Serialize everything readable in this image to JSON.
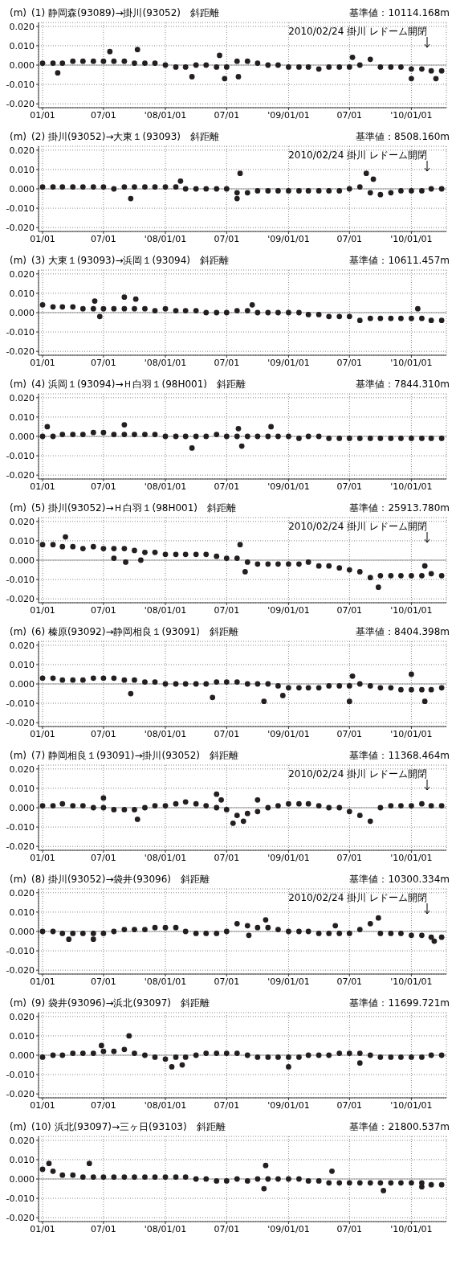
{
  "chart_data": [
    {
      "type": "scatter",
      "ylabel": "(m)",
      "title": "(1) 静岡森(93089)→掛川(93052)　斜距離",
      "subtitle": "基準値：10114.168m",
      "marker": "circle",
      "grid": true,
      "xlim": [
        "2006-12-20",
        "2010-04-15"
      ],
      "ylim": [
        -0.022,
        0.022
      ],
      "xticks": [
        {
          "value": "2007-01-01",
          "label": "01/01"
        },
        {
          "value": "2007-07-01",
          "label": "07/01"
        },
        {
          "value": "2008-01-01",
          "label": "'08/01/01"
        },
        {
          "value": "2008-07-01",
          "label": "07/01"
        },
        {
          "value": "2009-01-01",
          "label": "'09/01/01"
        },
        {
          "value": "2009-07-01",
          "label": "07/01"
        },
        {
          "value": "2010-01-01",
          "label": "'10/01/01"
        }
      ],
      "yticks": [
        {
          "value": 0.02,
          "label": "0.020"
        },
        {
          "value": 0.01,
          "label": "0.010"
        },
        {
          "value": 0,
          "label": "0.000"
        },
        {
          "value": -0.01,
          "label": "-0.010"
        },
        {
          "value": -0.02,
          "label": "-0.020"
        }
      ],
      "ref_lines": [
        {
          "axis": "y",
          "value": 0,
          "color": "#999999"
        }
      ],
      "annotations": [
        "2010/02/24 掛川 レドーム開閉"
      ],
      "x": [
        "2007-01",
        "2007-02",
        "2007-03",
        "2007-04",
        "2007-05",
        "2007-06",
        "2007-07",
        "2007-08",
        "2007-09",
        "2007-10",
        "2007-11",
        "2007-12",
        "2008-01",
        "2008-02",
        "2008-03",
        "2008-04",
        "2008-05",
        "2008-06",
        "2008-07",
        "2008-08",
        "2008-09",
        "2008-10",
        "2008-11",
        "2008-12",
        "2009-01",
        "2009-02",
        "2009-03",
        "2009-04",
        "2009-05",
        "2009-06",
        "2009-07",
        "2009-08",
        "2009-09",
        "2009-10",
        "2009-11",
        "2009-12",
        "2010-01",
        "2010-02",
        "2010-03",
        "2010-04"
      ],
      "series": [
        {
          "color": "#231f20",
          "values": [
            0.001,
            0.001,
            0.001,
            0.002,
            0.002,
            0.002,
            0.002,
            0.002,
            0.002,
            0.001,
            0.001,
            0.001,
            0.0,
            -0.001,
            -0.001,
            0.0,
            0.0,
            -0.001,
            -0.001,
            0.002,
            0.002,
            0.001,
            0.0,
            0.0,
            -0.001,
            -0.001,
            -0.001,
            -0.002,
            -0.001,
            -0.001,
            -0.001,
            0.0,
            0.003,
            -0.001,
            -0.001,
            -0.001,
            -0.002,
            -0.002,
            -0.003,
            -0.003
          ]
        },
        {
          "color": "#231f20",
          "x": [
            "2007-02-15",
            "2007-07-20",
            "2007-10-10",
            "2008-03-20",
            "2008-06-10",
            "2008-06-25",
            "2008-08-05",
            "2009-07-10",
            "2010-01-01",
            "2010-03-15"
          ],
          "values": [
            -0.004,
            0.007,
            0.008,
            -0.006,
            0.005,
            -0.007,
            -0.006,
            0.004,
            -0.007,
            -0.007
          ]
        }
      ]
    },
    {
      "type": "scatter",
      "ylabel": "(m)",
      "title": "(2) 掛川(93052)→大東１(93093)　斜距離",
      "subtitle": "基準値：8508.160m",
      "marker": "circle",
      "grid": true,
      "xlim": [
        "2006-12-20",
        "2010-04-15"
      ],
      "ylim": [
        -0.022,
        0.022
      ],
      "xticks": [
        {
          "value": "2007-01-01",
          "label": "01/01"
        },
        {
          "value": "2007-07-01",
          "label": "07/01"
        },
        {
          "value": "2008-01-01",
          "label": "'08/01/01"
        },
        {
          "value": "2008-07-01",
          "label": "07/01"
        },
        {
          "value": "2009-01-01",
          "label": "'09/01/01"
        },
        {
          "value": "2009-07-01",
          "label": "07/01"
        },
        {
          "value": "2010-01-01",
          "label": "'10/01/01"
        }
      ],
      "yticks": [
        {
          "value": 0.02,
          "label": "0.020"
        },
        {
          "value": 0.01,
          "label": "0.010"
        },
        {
          "value": 0,
          "label": "0.000"
        },
        {
          "value": -0.01,
          "label": "-0.010"
        },
        {
          "value": -0.02,
          "label": "-0.020"
        }
      ],
      "ref_lines": [
        {
          "axis": "y",
          "value": 0,
          "color": "#999999"
        }
      ],
      "annotations": [
        "2010/02/24 掛川 レドーム開閉"
      ],
      "x": [
        "2007-01",
        "2007-02",
        "2007-03",
        "2007-04",
        "2007-05",
        "2007-06",
        "2007-07",
        "2007-08",
        "2007-09",
        "2007-10",
        "2007-11",
        "2007-12",
        "2008-01",
        "2008-02",
        "2008-03",
        "2008-04",
        "2008-05",
        "2008-06",
        "2008-07",
        "2008-08",
        "2008-09",
        "2008-10",
        "2008-11",
        "2008-12",
        "2009-01",
        "2009-02",
        "2009-03",
        "2009-04",
        "2009-05",
        "2009-06",
        "2009-07",
        "2009-08",
        "2009-09",
        "2009-10",
        "2009-11",
        "2009-12",
        "2010-01",
        "2010-02",
        "2010-03",
        "2010-04"
      ],
      "series": [
        {
          "color": "#231f20",
          "values": [
            0.001,
            0.001,
            0.001,
            0.001,
            0.001,
            0.001,
            0.001,
            0.0,
            0.001,
            0.001,
            0.001,
            0.001,
            0.001,
            0.001,
            0.0,
            0.0,
            0.0,
            0.0,
            0.0,
            -0.002,
            -0.002,
            -0.001,
            -0.001,
            -0.001,
            -0.001,
            -0.001,
            -0.001,
            -0.001,
            -0.001,
            -0.001,
            0.0,
            0.001,
            -0.002,
            -0.003,
            -0.002,
            -0.001,
            -0.001,
            -0.001,
            0.0,
            0.0
          ]
        },
        {
          "color": "#231f20",
          "x": [
            "2007-09-20",
            "2008-02-15",
            "2008-08-01",
            "2008-08-10",
            "2009-08-20",
            "2009-09-10"
          ],
          "values": [
            -0.005,
            0.004,
            -0.005,
            0.008,
            0.008,
            0.005
          ]
        }
      ]
    },
    {
      "type": "scatter",
      "ylabel": "(m)",
      "title": "(3) 大東１(93093)→浜岡１(93094)　斜距離",
      "subtitle": "基準値：10611.457m",
      "marker": "circle",
      "grid": true,
      "xlim": [
        "2006-12-20",
        "2010-04-15"
      ],
      "ylim": [
        -0.022,
        0.022
      ],
      "xticks": [
        {
          "value": "2007-01-01",
          "label": "01/01"
        },
        {
          "value": "2007-07-01",
          "label": "07/01"
        },
        {
          "value": "2008-01-01",
          "label": "'08/01/01"
        },
        {
          "value": "2008-07-01",
          "label": "07/01"
        },
        {
          "value": "2009-01-01",
          "label": "'09/01/01"
        },
        {
          "value": "2009-07-01",
          "label": "07/01"
        },
        {
          "value": "2010-01-01",
          "label": "'10/01/01"
        }
      ],
      "yticks": [
        {
          "value": 0.02,
          "label": "0.020"
        },
        {
          "value": 0.01,
          "label": "0.010"
        },
        {
          "value": 0,
          "label": "0.000"
        },
        {
          "value": -0.01,
          "label": "-0.010"
        },
        {
          "value": -0.02,
          "label": "-0.020"
        }
      ],
      "ref_lines": [
        {
          "axis": "y",
          "value": 0,
          "color": "#999999"
        }
      ],
      "x": [
        "2007-01",
        "2007-02",
        "2007-03",
        "2007-04",
        "2007-05",
        "2007-06",
        "2007-07",
        "2007-08",
        "2007-09",
        "2007-10",
        "2007-11",
        "2007-12",
        "2008-01",
        "2008-02",
        "2008-03",
        "2008-04",
        "2008-05",
        "2008-06",
        "2008-07",
        "2008-08",
        "2008-09",
        "2008-10",
        "2008-11",
        "2008-12",
        "2009-01",
        "2009-02",
        "2009-03",
        "2009-04",
        "2009-05",
        "2009-06",
        "2009-07",
        "2009-08",
        "2009-09",
        "2009-10",
        "2009-11",
        "2009-12",
        "2010-01",
        "2010-02",
        "2010-03",
        "2010-04"
      ],
      "series": [
        {
          "color": "#231f20",
          "values": [
            0.004,
            0.003,
            0.003,
            0.003,
            0.002,
            0.002,
            0.002,
            0.002,
            0.002,
            0.002,
            0.002,
            0.001,
            0.002,
            0.001,
            0.001,
            0.001,
            0.0,
            0.0,
            0.0,
            0.001,
            0.001,
            0.0,
            0.0,
            0.0,
            0.0,
            0.0,
            -0.001,
            -0.001,
            -0.002,
            -0.002,
            -0.002,
            -0.004,
            -0.003,
            -0.003,
            -0.003,
            -0.003,
            -0.003,
            -0.003,
            -0.004,
            -0.004
          ]
        },
        {
          "color": "#231f20",
          "x": [
            "2007-06-05",
            "2007-06-20",
            "2007-09-01",
            "2007-10-05",
            "2008-09-15",
            "2010-01-20"
          ],
          "values": [
            0.006,
            -0.002,
            0.008,
            0.007,
            0.004,
            0.002
          ]
        }
      ]
    },
    {
      "type": "scatter",
      "ylabel": "(m)",
      "title": "(4) 浜岡１(93094)→Ｈ白羽１(98H001)　斜距離",
      "subtitle": "基準値：7844.310m",
      "marker": "circle",
      "grid": true,
      "xlim": [
        "2006-12-20",
        "2010-04-15"
      ],
      "ylim": [
        -0.022,
        0.022
      ],
      "xticks": [
        {
          "value": "2007-01-01",
          "label": "01/01"
        },
        {
          "value": "2007-07-01",
          "label": "07/01"
        },
        {
          "value": "2008-01-01",
          "label": "'08/01/01"
        },
        {
          "value": "2008-07-01",
          "label": "07/01"
        },
        {
          "value": "2009-01-01",
          "label": "'09/01/01"
        },
        {
          "value": "2009-07-01",
          "label": "07/01"
        },
        {
          "value": "2010-01-01",
          "label": "'10/01/01"
        }
      ],
      "yticks": [
        {
          "value": 0.02,
          "label": "0.020"
        },
        {
          "value": 0.01,
          "label": "0.010"
        },
        {
          "value": 0,
          "label": "0.000"
        },
        {
          "value": -0.01,
          "label": "-0.010"
        },
        {
          "value": -0.02,
          "label": "-0.020"
        }
      ],
      "ref_lines": [
        {
          "axis": "y",
          "value": 0,
          "color": "#999999"
        }
      ],
      "x": [
        "2007-01",
        "2007-02",
        "2007-03",
        "2007-04",
        "2007-05",
        "2007-06",
        "2007-07",
        "2007-08",
        "2007-09",
        "2007-10",
        "2007-11",
        "2007-12",
        "2008-01",
        "2008-02",
        "2008-03",
        "2008-04",
        "2008-05",
        "2008-06",
        "2008-07",
        "2008-08",
        "2008-09",
        "2008-10",
        "2008-11",
        "2008-12",
        "2009-01",
        "2009-02",
        "2009-03",
        "2009-04",
        "2009-05",
        "2009-06",
        "2009-07",
        "2009-08",
        "2009-09",
        "2009-10",
        "2009-11",
        "2009-12",
        "2010-01",
        "2010-02",
        "2010-03",
        "2010-04"
      ],
      "series": [
        {
          "color": "#231f20",
          "values": [
            0.0,
            0.0,
            0.001,
            0.001,
            0.001,
            0.002,
            0.002,
            0.001,
            0.001,
            0.001,
            0.001,
            0.001,
            0.0,
            0.0,
            0.0,
            0.0,
            0.0,
            0.001,
            0.0,
            0.0,
            0.0,
            0.0,
            0.0,
            0.0,
            0.0,
            -0.001,
            0.0,
            0.0,
            -0.001,
            -0.001,
            -0.001,
            -0.001,
            -0.001,
            -0.001,
            -0.001,
            -0.001,
            -0.001,
            -0.001,
            -0.001,
            -0.001
          ]
        },
        {
          "color": "#231f20",
          "x": [
            "2007-01-15",
            "2007-09-01",
            "2008-03-20",
            "2008-08-05",
            "2008-08-15",
            "2008-11-10"
          ],
          "values": [
            0.005,
            0.006,
            -0.006,
            0.004,
            -0.005,
            0.005
          ]
        }
      ]
    },
    {
      "type": "scatter",
      "ylabel": "(m)",
      "title": "(5) 掛川(93052)→Ｈ白羽１(98H001)　斜距離",
      "subtitle": "基準値：25913.780m",
      "marker": "circle",
      "grid": true,
      "xlim": [
        "2006-12-20",
        "2010-04-15"
      ],
      "ylim": [
        -0.022,
        0.022
      ],
      "xticks": [
        {
          "value": "2007-01-01",
          "label": "01/01"
        },
        {
          "value": "2007-07-01",
          "label": "07/01"
        },
        {
          "value": "2008-01-01",
          "label": "'08/01/01"
        },
        {
          "value": "2008-07-01",
          "label": "07/01"
        },
        {
          "value": "2009-01-01",
          "label": "'09/01/01"
        },
        {
          "value": "2009-07-01",
          "label": "07/01"
        },
        {
          "value": "2010-01-01",
          "label": "'10/01/01"
        }
      ],
      "yticks": [
        {
          "value": 0.02,
          "label": "0.020"
        },
        {
          "value": 0.01,
          "label": "0.010"
        },
        {
          "value": 0,
          "label": "0.000"
        },
        {
          "value": -0.01,
          "label": "-0.010"
        },
        {
          "value": -0.02,
          "label": "-0.020"
        }
      ],
      "ref_lines": [
        {
          "axis": "y",
          "value": 0,
          "color": "#999999"
        }
      ],
      "annotations": [
        "2010/02/24 掛川 レドーム開閉"
      ],
      "x": [
        "2007-01",
        "2007-02",
        "2007-03",
        "2007-04",
        "2007-05",
        "2007-06",
        "2007-07",
        "2007-08",
        "2007-09",
        "2007-10",
        "2007-11",
        "2007-12",
        "2008-01",
        "2008-02",
        "2008-03",
        "2008-04",
        "2008-05",
        "2008-06",
        "2008-07",
        "2008-08",
        "2008-09",
        "2008-10",
        "2008-11",
        "2008-12",
        "2009-01",
        "2009-02",
        "2009-03",
        "2009-04",
        "2009-05",
        "2009-06",
        "2009-07",
        "2009-08",
        "2009-09",
        "2009-10",
        "2009-11",
        "2009-12",
        "2010-01",
        "2010-02",
        "2010-03",
        "2010-04"
      ],
      "series": [
        {
          "color": "#231f20",
          "values": [
            0.008,
            0.008,
            0.007,
            0.007,
            0.006,
            0.007,
            0.006,
            0.006,
            0.006,
            0.005,
            0.004,
            0.004,
            0.003,
            0.003,
            0.003,
            0.003,
            0.003,
            0.002,
            0.001,
            0.001,
            -0.001,
            -0.002,
            -0.002,
            -0.002,
            -0.002,
            -0.002,
            -0.001,
            -0.003,
            -0.003,
            -0.004,
            -0.005,
            -0.006,
            -0.009,
            -0.008,
            -0.008,
            -0.008,
            -0.008,
            -0.008,
            -0.007,
            -0.008
          ]
        },
        {
          "color": "#231f20",
          "x": [
            "2007-03-10",
            "2007-08-01",
            "2007-09-05",
            "2007-10-20",
            "2008-08-10",
            "2008-08-25",
            "2009-09-25",
            "2010-02-10"
          ],
          "values": [
            0.012,
            0.001,
            -0.001,
            0.0,
            0.008,
            -0.006,
            -0.014,
            -0.003
          ]
        }
      ]
    },
    {
      "type": "scatter",
      "ylabel": "(m)",
      "title": "(6) 榛原(93092)→静岡相良１(93091)　斜距離",
      "subtitle": "基準値：8404.398m",
      "marker": "circle",
      "grid": true,
      "xlim": [
        "2006-12-20",
        "2010-04-15"
      ],
      "ylim": [
        -0.022,
        0.022
      ],
      "xticks": [
        {
          "value": "2007-01-01",
          "label": "01/01"
        },
        {
          "value": "2007-07-01",
          "label": "07/01"
        },
        {
          "value": "2008-01-01",
          "label": "'08/01/01"
        },
        {
          "value": "2008-07-01",
          "label": "07/01"
        },
        {
          "value": "2009-01-01",
          "label": "'09/01/01"
        },
        {
          "value": "2009-07-01",
          "label": "07/01"
        },
        {
          "value": "2010-01-01",
          "label": "'10/01/01"
        }
      ],
      "yticks": [
        {
          "value": 0.02,
          "label": "0.020"
        },
        {
          "value": 0.01,
          "label": "0.010"
        },
        {
          "value": 0,
          "label": "0.000"
        },
        {
          "value": -0.01,
          "label": "-0.010"
        },
        {
          "value": -0.02,
          "label": "-0.020"
        }
      ],
      "ref_lines": [
        {
          "axis": "y",
          "value": 0,
          "color": "#999999"
        }
      ],
      "x": [
        "2007-01",
        "2007-02",
        "2007-03",
        "2007-04",
        "2007-05",
        "2007-06",
        "2007-07",
        "2007-08",
        "2007-09",
        "2007-10",
        "2007-11",
        "2007-12",
        "2008-01",
        "2008-02",
        "2008-03",
        "2008-04",
        "2008-05",
        "2008-06",
        "2008-07",
        "2008-08",
        "2008-09",
        "2008-10",
        "2008-11",
        "2008-12",
        "2009-01",
        "2009-02",
        "2009-03",
        "2009-04",
        "2009-05",
        "2009-06",
        "2009-07",
        "2009-08",
        "2009-09",
        "2009-10",
        "2009-11",
        "2009-12",
        "2010-01",
        "2010-02",
        "2010-03",
        "2010-04"
      ],
      "series": [
        {
          "color": "#231f20",
          "values": [
            0.003,
            0.003,
            0.002,
            0.002,
            0.002,
            0.003,
            0.003,
            0.003,
            0.002,
            0.002,
            0.001,
            0.001,
            0.0,
            0.0,
            0.0,
            0.0,
            0.0,
            0.001,
            0.001,
            0.001,
            0.0,
            0.0,
            0.0,
            -0.001,
            -0.002,
            -0.002,
            -0.002,
            -0.002,
            -0.001,
            -0.001,
            -0.001,
            0.0,
            -0.001,
            -0.002,
            -0.002,
            -0.003,
            -0.003,
            -0.003,
            -0.003,
            -0.002
          ]
        },
        {
          "color": "#231f20",
          "x": [
            "2007-09-20",
            "2008-05-20",
            "2008-10-20",
            "2008-12-15",
            "2009-07-01",
            "2009-07-10",
            "2010-01-01",
            "2010-02-10"
          ],
          "values": [
            -0.005,
            -0.007,
            -0.009,
            -0.006,
            -0.009,
            0.004,
            0.005,
            -0.009
          ]
        }
      ]
    },
    {
      "type": "scatter",
      "ylabel": "(m)",
      "title": "(7) 静岡相良１(93091)→掛川(93052)　斜距離",
      "subtitle": "基準値：11368.464m",
      "marker": "circle",
      "grid": true,
      "xlim": [
        "2006-12-20",
        "2010-04-15"
      ],
      "ylim": [
        -0.022,
        0.022
      ],
      "xticks": [
        {
          "value": "2007-01-01",
          "label": "01/01"
        },
        {
          "value": "2007-07-01",
          "label": "07/01"
        },
        {
          "value": "2008-01-01",
          "label": "'08/01/01"
        },
        {
          "value": "2008-07-01",
          "label": "07/01"
        },
        {
          "value": "2009-01-01",
          "label": "'09/01/01"
        },
        {
          "value": "2009-07-01",
          "label": "07/01"
        },
        {
          "value": "2010-01-01",
          "label": "'10/01/01"
        }
      ],
      "yticks": [
        {
          "value": 0.02,
          "label": "0.020"
        },
        {
          "value": 0.01,
          "label": "0.010"
        },
        {
          "value": 0,
          "label": "0.000"
        },
        {
          "value": -0.01,
          "label": "-0.010"
        },
        {
          "value": -0.02,
          "label": "-0.020"
        }
      ],
      "ref_lines": [
        {
          "axis": "y",
          "value": 0,
          "color": "#999999"
        }
      ],
      "annotations": [
        "2010/02/24 掛川 レドーム開閉"
      ],
      "x": [
        "2007-01",
        "2007-02",
        "2007-03",
        "2007-04",
        "2007-05",
        "2007-06",
        "2007-07",
        "2007-08",
        "2007-09",
        "2007-10",
        "2007-11",
        "2007-12",
        "2008-01",
        "2008-02",
        "2008-03",
        "2008-04",
        "2008-05",
        "2008-06",
        "2008-07",
        "2008-08",
        "2008-09",
        "2008-10",
        "2008-11",
        "2008-12",
        "2009-01",
        "2009-02",
        "2009-03",
        "2009-04",
        "2009-05",
        "2009-06",
        "2009-07",
        "2009-08",
        "2009-09",
        "2009-10",
        "2009-11",
        "2009-12",
        "2010-01",
        "2010-02",
        "2010-03",
        "2010-04"
      ],
      "series": [
        {
          "color": "#231f20",
          "values": [
            0.001,
            0.001,
            0.002,
            0.001,
            0.001,
            0.0,
            0.0,
            -0.001,
            -0.001,
            -0.001,
            0.0,
            0.001,
            0.001,
            0.002,
            0.003,
            0.002,
            0.001,
            0.0,
            -0.001,
            -0.004,
            -0.003,
            -0.002,
            0.0,
            0.001,
            0.002,
            0.002,
            0.002,
            0.001,
            0.0,
            0.0,
            -0.002,
            -0.004,
            -0.007,
            0.0,
            0.001,
            0.001,
            0.001,
            0.002,
            0.001,
            0.001
          ]
        },
        {
          "color": "#231f20",
          "x": [
            "2007-07-01",
            "2007-10-10",
            "2008-06-01",
            "2008-06-15",
            "2008-07-20",
            "2008-08-20",
            "2008-10-01"
          ],
          "values": [
            0.005,
            -0.006,
            0.007,
            0.004,
            -0.008,
            -0.007,
            0.004
          ]
        }
      ]
    },
    {
      "type": "scatter",
      "ylabel": "(m)",
      "title": "(8) 掛川(93052)→袋井(93096)　斜距離",
      "subtitle": "基準値：10300.334m",
      "marker": "circle",
      "grid": true,
      "xlim": [
        "2006-12-20",
        "2010-04-15"
      ],
      "ylim": [
        -0.022,
        0.022
      ],
      "xticks": [
        {
          "value": "2007-01-01",
          "label": "01/01"
        },
        {
          "value": "2007-07-01",
          "label": "07/01"
        },
        {
          "value": "2008-01-01",
          "label": "'08/01/01"
        },
        {
          "value": "2008-07-01",
          "label": "07/01"
        },
        {
          "value": "2009-01-01",
          "label": "'09/01/01"
        },
        {
          "value": "2009-07-01",
          "label": "07/01"
        },
        {
          "value": "2010-01-01",
          "label": "'10/01/01"
        }
      ],
      "yticks": [
        {
          "value": 0.02,
          "label": "0.020"
        },
        {
          "value": 0.01,
          "label": "0.010"
        },
        {
          "value": 0,
          "label": "0.000"
        },
        {
          "value": -0.01,
          "label": "-0.010"
        },
        {
          "value": -0.02,
          "label": "-0.020"
        }
      ],
      "ref_lines": [
        {
          "axis": "y",
          "value": 0,
          "color": "#999999"
        }
      ],
      "annotations": [
        "2010/02/24 掛川 レドーム開閉"
      ],
      "x": [
        "2007-01",
        "2007-02",
        "2007-03",
        "2007-04",
        "2007-05",
        "2007-06",
        "2007-07",
        "2007-08",
        "2007-09",
        "2007-10",
        "2007-11",
        "2007-12",
        "2008-01",
        "2008-02",
        "2008-03",
        "2008-04",
        "2008-05",
        "2008-06",
        "2008-07",
        "2008-08",
        "2008-09",
        "2008-10",
        "2008-11",
        "2008-12",
        "2009-01",
        "2009-02",
        "2009-03",
        "2009-04",
        "2009-05",
        "2009-06",
        "2009-07",
        "2009-08",
        "2009-09",
        "2009-10",
        "2009-11",
        "2009-12",
        "2010-01",
        "2010-02",
        "2010-03",
        "2010-04"
      ],
      "series": [
        {
          "color": "#231f20",
          "values": [
            0.0,
            0.0,
            -0.001,
            -0.001,
            -0.001,
            -0.001,
            -0.001,
            0.0,
            0.001,
            0.001,
            0.001,
            0.002,
            0.002,
            0.002,
            0.0,
            -0.001,
            -0.001,
            -0.001,
            0.0,
            0.004,
            0.003,
            0.002,
            0.002,
            0.001,
            0.0,
            0.0,
            0.0,
            -0.001,
            -0.001,
            -0.001,
            -0.001,
            0.001,
            0.004,
            -0.001,
            -0.001,
            -0.001,
            -0.002,
            -0.002,
            -0.003,
            -0.003
          ]
        },
        {
          "color": "#231f20",
          "x": [
            "2007-03-20",
            "2007-06-01",
            "2008-09-05",
            "2008-10-25",
            "2009-05-20",
            "2009-09-25",
            "2010-03-10"
          ],
          "values": [
            -0.004,
            -0.004,
            -0.002,
            0.006,
            0.003,
            0.007,
            -0.005
          ]
        }
      ]
    },
    {
      "type": "scatter",
      "ylabel": "(m)",
      "title": "(9) 袋井(93096)→浜北(93097)　斜距離",
      "subtitle": "基準値：11699.721m",
      "marker": "circle",
      "grid": true,
      "xlim": [
        "2006-12-20",
        "2010-04-15"
      ],
      "ylim": [
        -0.022,
        0.022
      ],
      "xticks": [
        {
          "value": "2007-01-01",
          "label": "01/01"
        },
        {
          "value": "2007-07-01",
          "label": "07/01"
        },
        {
          "value": "2008-01-01",
          "label": "'08/01/01"
        },
        {
          "value": "2008-07-01",
          "label": "07/01"
        },
        {
          "value": "2009-01-01",
          "label": "'09/01/01"
        },
        {
          "value": "2009-07-01",
          "label": "07/01"
        },
        {
          "value": "2010-01-01",
          "label": "'10/01/01"
        }
      ],
      "yticks": [
        {
          "value": 0.02,
          "label": "0.020"
        },
        {
          "value": 0.01,
          "label": "0.010"
        },
        {
          "value": 0,
          "label": "0.000"
        },
        {
          "value": -0.01,
          "label": "-0.010"
        },
        {
          "value": -0.02,
          "label": "-0.020"
        }
      ],
      "ref_lines": [
        {
          "axis": "y",
          "value": 0,
          "color": "#999999"
        }
      ],
      "x": [
        "2007-01",
        "2007-02",
        "2007-03",
        "2007-04",
        "2007-05",
        "2007-06",
        "2007-07",
        "2007-08",
        "2007-09",
        "2007-10",
        "2007-11",
        "2007-12",
        "2008-01",
        "2008-02",
        "2008-03",
        "2008-04",
        "2008-05",
        "2008-06",
        "2008-07",
        "2008-08",
        "2008-09",
        "2008-10",
        "2008-11",
        "2008-12",
        "2009-01",
        "2009-02",
        "2009-03",
        "2009-04",
        "2009-05",
        "2009-06",
        "2009-07",
        "2009-08",
        "2009-09",
        "2009-10",
        "2009-11",
        "2009-12",
        "2010-01",
        "2010-02",
        "2010-03",
        "2010-04"
      ],
      "series": [
        {
          "color": "#231f20",
          "values": [
            -0.001,
            0.0,
            0.0,
            0.001,
            0.001,
            0.001,
            0.002,
            0.002,
            0.003,
            0.001,
            0.0,
            -0.001,
            -0.002,
            -0.001,
            -0.001,
            0.0,
            0.001,
            0.001,
            0.001,
            0.001,
            0.0,
            -0.001,
            -0.001,
            -0.001,
            -0.001,
            -0.001,
            0.0,
            0.0,
            0.0,
            0.001,
            0.001,
            0.001,
            0.0,
            -0.001,
            -0.001,
            -0.001,
            -0.001,
            -0.001,
            0.0,
            0.0
          ]
        },
        {
          "color": "#231f20",
          "x": [
            "2007-06-25",
            "2007-09-15",
            "2008-01-20",
            "2008-02-20",
            "2009-01-01",
            "2009-08-01"
          ],
          "values": [
            0.005,
            0.01,
            -0.006,
            -0.005,
            -0.006,
            -0.004
          ]
        }
      ]
    },
    {
      "type": "scatter",
      "ylabel": "(m)",
      "title": "(10) 浜北(93097)→三ヶ日(93103)　斜距離",
      "subtitle": "基準値：21800.537m",
      "marker": "circle",
      "grid": true,
      "xlim": [
        "2006-12-20",
        "2010-04-15"
      ],
      "ylim": [
        -0.022,
        0.022
      ],
      "xticks": [
        {
          "value": "2007-01-01",
          "label": "01/01"
        },
        {
          "value": "2007-07-01",
          "label": "07/01"
        },
        {
          "value": "2008-01-01",
          "label": "'08/01/01"
        },
        {
          "value": "2008-07-01",
          "label": "07/01"
        },
        {
          "value": "2009-01-01",
          "label": "'09/01/01"
        },
        {
          "value": "2009-07-01",
          "label": "07/01"
        },
        {
          "value": "2010-01-01",
          "label": "'10/01/01"
        }
      ],
      "yticks": [
        {
          "value": 0.02,
          "label": "0.020"
        },
        {
          "value": 0.01,
          "label": "0.010"
        },
        {
          "value": 0,
          "label": "0.000"
        },
        {
          "value": -0.01,
          "label": "-0.010"
        },
        {
          "value": -0.02,
          "label": "-0.020"
        }
      ],
      "ref_lines": [
        {
          "axis": "y",
          "value": 0,
          "color": "#999999"
        }
      ],
      "x": [
        "2007-01",
        "2007-02",
        "2007-03",
        "2007-04",
        "2007-05",
        "2007-06",
        "2007-07",
        "2007-08",
        "2007-09",
        "2007-10",
        "2007-11",
        "2007-12",
        "2008-01",
        "2008-02",
        "2008-03",
        "2008-04",
        "2008-05",
        "2008-06",
        "2008-07",
        "2008-08",
        "2008-09",
        "2008-10",
        "2008-11",
        "2008-12",
        "2009-01",
        "2009-02",
        "2009-03",
        "2009-04",
        "2009-05",
        "2009-06",
        "2009-07",
        "2009-08",
        "2009-09",
        "2009-10",
        "2009-11",
        "2009-12",
        "2010-01",
        "2010-02",
        "2010-03",
        "2010-04"
      ],
      "series": [
        {
          "color": "#231f20",
          "values": [
            0.005,
            0.004,
            0.002,
            0.002,
            0.001,
            0.001,
            0.001,
            0.001,
            0.001,
            0.001,
            0.001,
            0.001,
            0.001,
            0.001,
            0.001,
            0.0,
            0.0,
            -0.001,
            -0.001,
            0.0,
            -0.001,
            0.0,
            0.0,
            0.0,
            0.0,
            0.0,
            -0.001,
            -0.001,
            -0.002,
            -0.002,
            -0.002,
            -0.002,
            -0.002,
            -0.002,
            -0.002,
            -0.002,
            -0.002,
            -0.002,
            -0.003,
            -0.003
          ]
        },
        {
          "color": "#231f20",
          "x": [
            "2007-01-20",
            "2007-05-20",
            "2008-10-20",
            "2008-10-25",
            "2009-05-10",
            "2009-10-10",
            "2010-02-01"
          ],
          "values": [
            0.008,
            0.008,
            -0.005,
            0.007,
            0.004,
            -0.006,
            -0.004
          ]
        }
      ]
    }
  ]
}
